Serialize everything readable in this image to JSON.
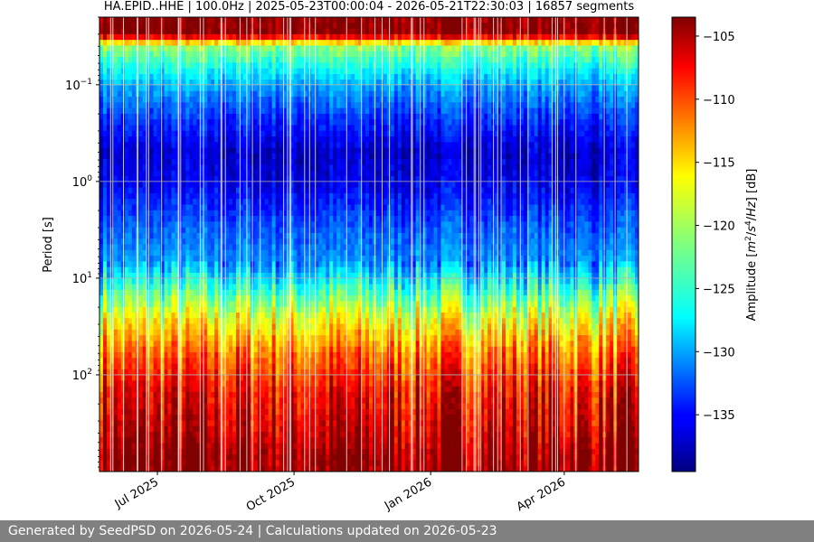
{
  "chart_data": {
    "type": "heatmap",
    "title": "HA.EPID..HHE | 100.0Hz | 2025-05-23T00:00:04 - 2026-05-21T22:30:03 | 16857 segments",
    "xlabel": "",
    "ylabel": "Period [s]",
    "x_range": [
      "2025-05-23",
      "2026-05-21"
    ],
    "x_ticks": [
      {
        "date": "2025-07-01",
        "label": "Jul 2025"
      },
      {
        "date": "2025-10-01",
        "label": "Oct 2025"
      },
      {
        "date": "2026-01-01",
        "label": "Jan 2026"
      },
      {
        "date": "2026-04-01",
        "label": "Apr 2026"
      }
    ],
    "y_scale": "log",
    "y_range": [
      0.02,
      1000
    ],
    "y_inverted": true,
    "y_ticks": [
      {
        "value": 0.1,
        "label_base": "10",
        "label_exp": "−1"
      },
      {
        "value": 1,
        "label_base": "10",
        "label_exp": "0"
      },
      {
        "value": 10,
        "label_base": "10",
        "label_exp": "1"
      },
      {
        "value": 100,
        "label_base": "10",
        "label_exp": "2"
      }
    ],
    "grid": true,
    "colorbar": {
      "label_parts": [
        "Amplitude [",
        "m",
        "2",
        "/",
        "s",
        "4",
        "/",
        "Hz",
        "] [dB]"
      ],
      "range": [
        -139.5,
        -103.5
      ],
      "ticks": [
        -105,
        -110,
        -115,
        -120,
        -125,
        -130,
        -135
      ],
      "colormap": "jet"
    },
    "amplitude_profile": [
      {
        "period": 0.02,
        "db": -104
      },
      {
        "period": 0.03,
        "db": -104
      },
      {
        "period": 0.04,
        "db": -121
      },
      {
        "period": 0.07,
        "db": -126
      },
      {
        "period": 0.1,
        "db": -129
      },
      {
        "period": 0.2,
        "db": -133
      },
      {
        "period": 0.5,
        "db": -137
      },
      {
        "period": 1,
        "db": -136
      },
      {
        "period": 3,
        "db": -132
      },
      {
        "period": 7,
        "db": -130
      },
      {
        "period": 12,
        "db": -125
      },
      {
        "period": 25,
        "db": -118
      },
      {
        "period": 60,
        "db": -112
      },
      {
        "period": 150,
        "db": -108
      },
      {
        "period": 400,
        "db": -106
      },
      {
        "period": 700,
        "db": -104
      },
      {
        "period": 1000,
        "db": -104
      }
    ]
  },
  "footer": {
    "text": "Generated by SeedPSD on 2026-05-24 | Calculations updated on 2026-05-23"
  }
}
